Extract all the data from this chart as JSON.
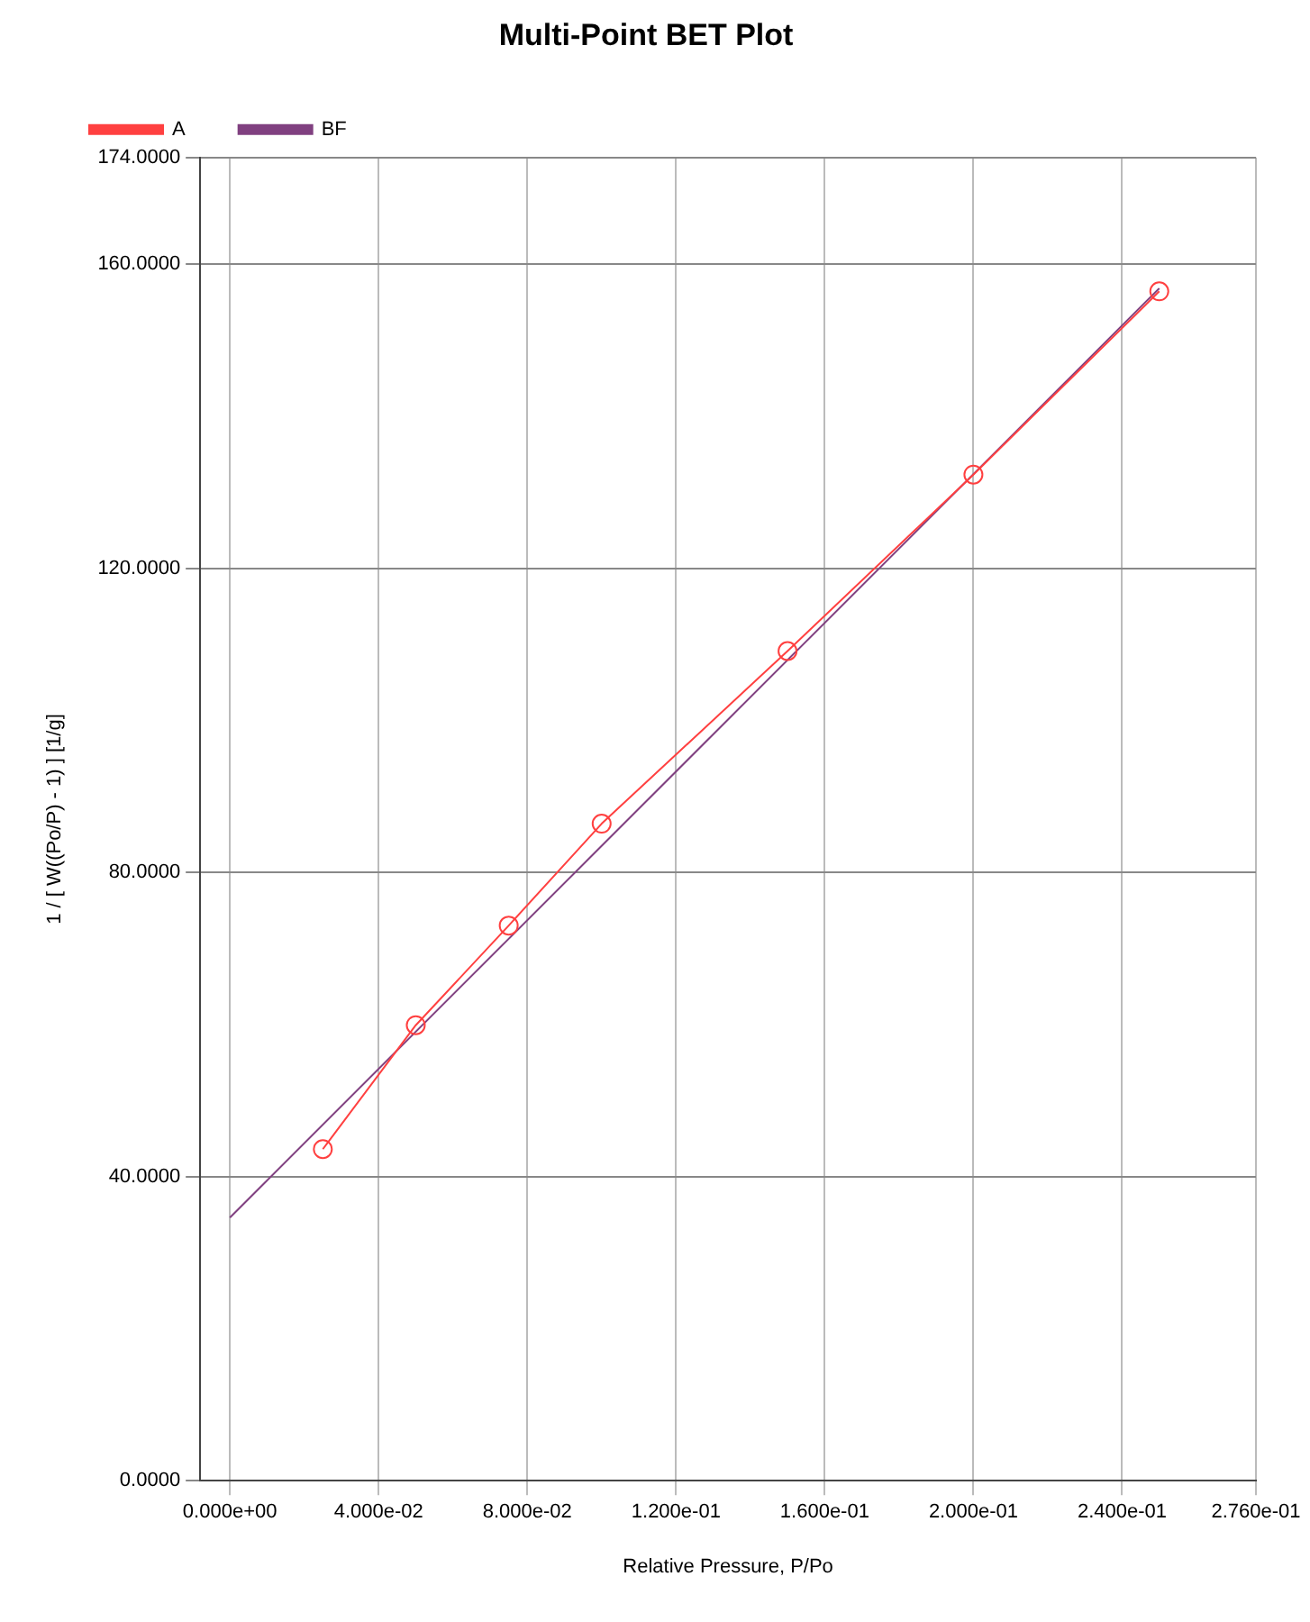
{
  "chart_data": {
    "type": "line",
    "title": "Multi-Point BET Plot",
    "xlabel": "Relative Pressure, P/Po",
    "ylabel": "1 / [ W((Po/P) - 1) ] [1/g]",
    "series": [
      {
        "name": "A",
        "marker": "circle",
        "color": "#ff4040",
        "x": [
          0.025,
          0.05,
          0.075,
          0.1,
          0.15,
          0.2,
          0.25
        ],
        "values": [
          43.6,
          59.9,
          73.0,
          86.4,
          109.1,
          132.3,
          156.4
        ]
      },
      {
        "name": "BF",
        "marker": "none",
        "color": "#804080",
        "x": [
          0,
          0.25
        ],
        "values": [
          34.6,
          156.8
        ]
      }
    ],
    "xlim": [
      -0.008,
      0.276
    ],
    "xticks": [
      {
        "value": 0,
        "label": "0.000e+00"
      },
      {
        "value": 0.04,
        "label": "4.000e-02"
      },
      {
        "value": 0.08,
        "label": "8.000e-02"
      },
      {
        "value": 0.12,
        "label": "1.200e-01"
      },
      {
        "value": 0.16,
        "label": "1.600e-01"
      },
      {
        "value": 0.2,
        "label": "2.000e-01"
      },
      {
        "value": 0.24,
        "label": "2.400e-01"
      },
      {
        "value": 0.276,
        "label": "2.760e-01"
      }
    ],
    "ylim": [
      0,
      174
    ],
    "yticks": [
      {
        "value": 0,
        "label": "0.0000"
      },
      {
        "value": 40,
        "label": "40.0000"
      },
      {
        "value": 80,
        "label": "80.0000"
      },
      {
        "value": 120,
        "label": "120.0000"
      },
      {
        "value": 160,
        "label": "160.0000"
      },
      {
        "value": 174,
        "label": "174.0000"
      }
    ],
    "grid": true,
    "legend": "top left"
  }
}
